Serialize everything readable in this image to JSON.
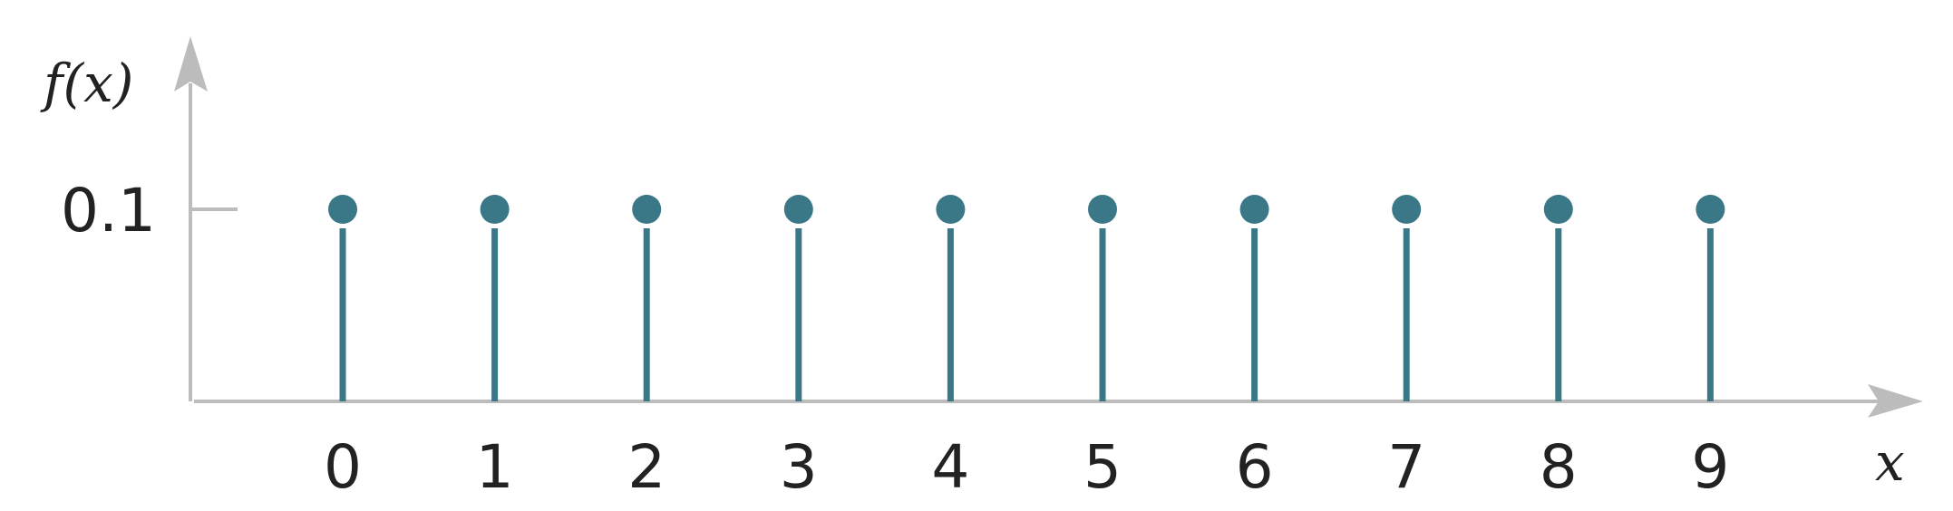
{
  "chart_data": {
    "type": "stem",
    "x": [
      0,
      1,
      2,
      3,
      4,
      5,
      6,
      7,
      8,
      9
    ],
    "values": [
      0.1,
      0.1,
      0.1,
      0.1,
      0.1,
      0.1,
      0.1,
      0.1,
      0.1,
      0.1
    ],
    "xlabel": "x",
    "ylabel": "f(x)",
    "yticks": [
      0.1
    ],
    "ytick_labels": [
      "0.1"
    ],
    "xtick_labels": [
      "0",
      "1",
      "2",
      "3",
      "4",
      "5",
      "6",
      "7",
      "8",
      "9"
    ],
    "grid": false,
    "colors": {
      "stem": "#3a7787",
      "axis": "#bcbcbc",
      "text": "#222222"
    }
  }
}
